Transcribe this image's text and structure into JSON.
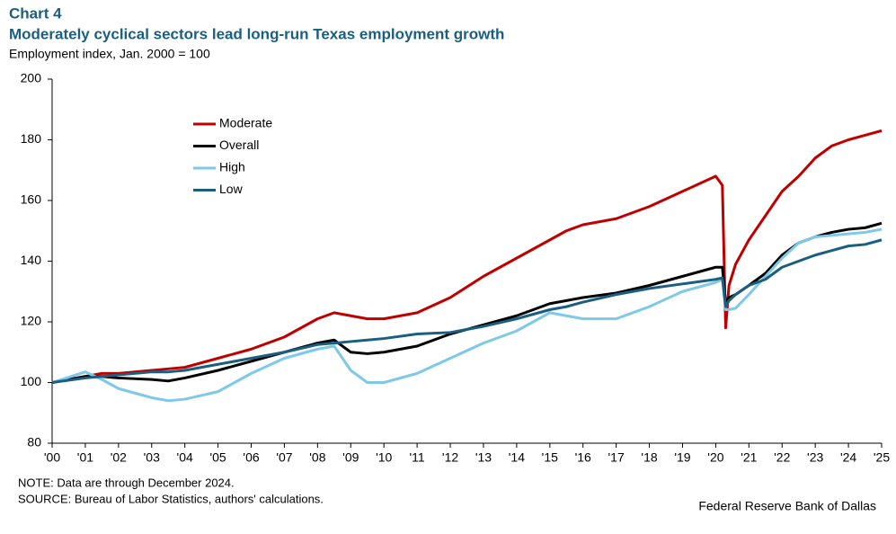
{
  "chart_data": {
    "type": "line",
    "label": "Chart 4",
    "title": "Moderately cyclical sectors lead long-run Texas employment growth",
    "y_label": "Employment index, Jan. 2000 = 100",
    "note": "NOTE: Data are through December 2024.",
    "source": "SOURCE: Bureau of Labor Statistics, authors' calculations.",
    "credit": "Federal Reserve Bank of Dallas",
    "x": [
      2000,
      2001,
      2001.5,
      2002,
      2003,
      2003.5,
      2004,
      2005,
      2006,
      2007,
      2008,
      2008.5,
      2009,
      2009.5,
      2010,
      2011,
      2012,
      2013,
      2014,
      2015,
      2015.5,
      2016,
      2017,
      2018,
      2019,
      2020,
      2020.2,
      2020.3,
      2020.4,
      2020.6,
      2021,
      2021.5,
      2022,
      2022.5,
      2023,
      2023.5,
      2024,
      2024.5,
      2025
    ],
    "series": [
      {
        "name": "Moderate",
        "color": "#c00000",
        "values": [
          100,
          102,
          103,
          103,
          104,
          104.5,
          105,
          108,
          111,
          115,
          121,
          123,
          122,
          121,
          121,
          123,
          128,
          135,
          141,
          147,
          150,
          152,
          154,
          158,
          163,
          168,
          165,
          118,
          132,
          139,
          147,
          155,
          163,
          168,
          174,
          178,
          180,
          181.5,
          183
        ]
      },
      {
        "name": "Overall",
        "color": "#000000",
        "values": [
          100,
          102,
          102,
          101.5,
          101,
          100.5,
          101.5,
          104,
          107,
          110,
          113,
          114,
          110,
          109.5,
          110,
          112,
          116,
          119,
          122,
          126,
          127,
          128,
          129.5,
          132,
          135,
          138,
          138,
          126,
          128,
          129,
          132,
          136,
          142,
          146,
          148,
          149.5,
          150.5,
          151,
          152.5
        ]
      },
      {
        "name": "High",
        "color": "#7ec8e8",
        "values": [
          100,
          103.5,
          101,
          98,
          95,
          94,
          94.5,
          97,
          103,
          108,
          111,
          112,
          104,
          100,
          100,
          103,
          108,
          113,
          117,
          123,
          122,
          121,
          121,
          125,
          130,
          133,
          134,
          124,
          124,
          124.5,
          129,
          135,
          141,
          146,
          148,
          148.5,
          149,
          149.5,
          150.5
        ]
      },
      {
        "name": "Low",
        "color": "#1a5e80",
        "values": [
          100,
          101.5,
          102,
          102.5,
          103.5,
          103.5,
          104,
          106,
          108,
          110,
          112.5,
          113,
          113.5,
          114,
          114.5,
          116,
          116.5,
          118.5,
          121,
          124,
          125,
          126.5,
          129,
          131,
          132.5,
          134,
          134.5,
          125,
          127,
          129,
          132,
          134,
          138,
          140,
          142,
          143.5,
          145,
          145.5,
          147
        ]
      }
    ],
    "xlim": [
      2000,
      2025
    ],
    "xticks": [
      {
        "value": 2000,
        "label": "'00"
      },
      {
        "value": 2001,
        "label": "'01"
      },
      {
        "value": 2002,
        "label": "'02"
      },
      {
        "value": 2003,
        "label": "'03"
      },
      {
        "value": 2004,
        "label": "'04"
      },
      {
        "value": 2005,
        "label": "'05"
      },
      {
        "value": 2006,
        "label": "'06"
      },
      {
        "value": 2007,
        "label": "'07"
      },
      {
        "value": 2008,
        "label": "'08"
      },
      {
        "value": 2009,
        "label": "'09"
      },
      {
        "value": 2010,
        "label": "'10"
      },
      {
        "value": 2011,
        "label": "'11"
      },
      {
        "value": 2012,
        "label": "'12"
      },
      {
        "value": 2013,
        "label": "'13"
      },
      {
        "value": 2014,
        "label": "'14"
      },
      {
        "value": 2015,
        "label": "'15"
      },
      {
        "value": 2016,
        "label": "'16"
      },
      {
        "value": 2017,
        "label": "'17"
      },
      {
        "value": 2018,
        "label": "'18"
      },
      {
        "value": 2019,
        "label": "'19"
      },
      {
        "value": 2020,
        "label": "'20"
      },
      {
        "value": 2021,
        "label": "'21"
      },
      {
        "value": 2022,
        "label": "'22"
      },
      {
        "value": 2023,
        "label": "'23"
      },
      {
        "value": 2024,
        "label": "'24"
      },
      {
        "value": 2025,
        "label": "'25"
      }
    ],
    "ylim": [
      80,
      200
    ],
    "yticks": [
      80,
      100,
      120,
      140,
      160,
      180,
      200
    ],
    "grid": false
  }
}
